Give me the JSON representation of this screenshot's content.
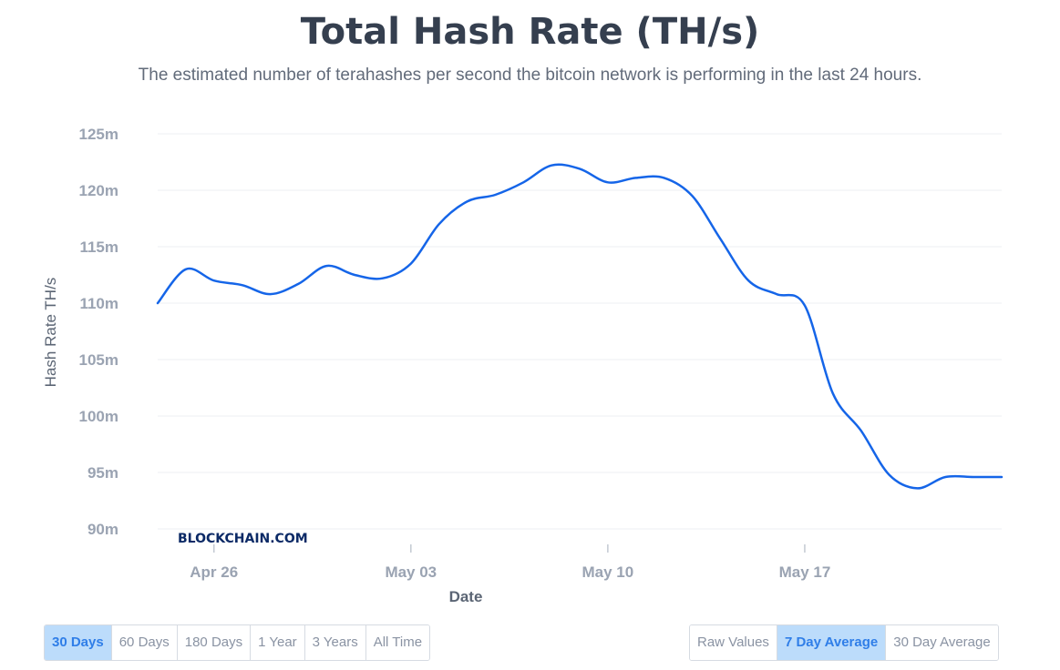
{
  "header": {
    "title": "Total Hash Rate (TH/s)",
    "subtitle": "The estimated number of terahashes per second the bitcoin network is performing in the last 24 hours."
  },
  "watermark": "BLOCKCHAIN.COM",
  "colors": {
    "line": "#1565e8",
    "grid": "#eceff3",
    "axis_text": "#9aa3b2",
    "label_text": "#5b6574"
  },
  "chart_data": {
    "type": "line",
    "xlabel": "Date",
    "ylabel": "Hash Rate TH/s",
    "ylim": [
      90,
      125
    ],
    "y_ticks": [
      90,
      95,
      100,
      105,
      110,
      115,
      120,
      125
    ],
    "y_tick_labels": [
      "90m",
      "95m",
      "100m",
      "105m",
      "110m",
      "115m",
      "120m",
      "125m"
    ],
    "x_range": [
      "2020-04-24",
      "2020-05-24"
    ],
    "x_ticks": [
      {
        "date": "2020-04-26",
        "label": "Apr 26"
      },
      {
        "date": "2020-05-03",
        "label": "May 03"
      },
      {
        "date": "2020-05-10",
        "label": "May 10"
      },
      {
        "date": "2020-05-17",
        "label": "May 17"
      }
    ],
    "grid": true,
    "series": [
      {
        "x": [
          "2020-04-24",
          "2020-04-25",
          "2020-04-26",
          "2020-04-27",
          "2020-04-28",
          "2020-04-29",
          "2020-04-30",
          "2020-05-01",
          "2020-05-02",
          "2020-05-03",
          "2020-05-04",
          "2020-05-05",
          "2020-05-06",
          "2020-05-07",
          "2020-05-08",
          "2020-05-09",
          "2020-05-10",
          "2020-05-11",
          "2020-05-12",
          "2020-05-13",
          "2020-05-14",
          "2020-05-15",
          "2020-05-16",
          "2020-05-17",
          "2020-05-18",
          "2020-05-19",
          "2020-05-20",
          "2020-05-21",
          "2020-05-22",
          "2020-05-23",
          "2020-05-24"
        ],
        "values": [
          110.0,
          113.0,
          112.0,
          111.6,
          110.8,
          111.7,
          113.3,
          112.5,
          112.2,
          113.5,
          117.0,
          119.0,
          119.6,
          120.7,
          122.2,
          121.9,
          120.7,
          121.1,
          121.1,
          119.5,
          115.7,
          112.0,
          110.8,
          109.8,
          102.0,
          98.7,
          94.8,
          93.6,
          94.6,
          94.6,
          94.6
        ]
      }
    ]
  },
  "controls": {
    "range_buttons": [
      {
        "label": "30 Days",
        "active": true
      },
      {
        "label": "60 Days",
        "active": false
      },
      {
        "label": "180 Days",
        "active": false
      },
      {
        "label": "1 Year",
        "active": false
      },
      {
        "label": "3 Years",
        "active": false
      },
      {
        "label": "All Time",
        "active": false
      }
    ],
    "avg_buttons": [
      {
        "label": "Raw Values",
        "active": false
      },
      {
        "label": "7 Day Average",
        "active": true
      },
      {
        "label": "30 Day Average",
        "active": false
      }
    ]
  }
}
